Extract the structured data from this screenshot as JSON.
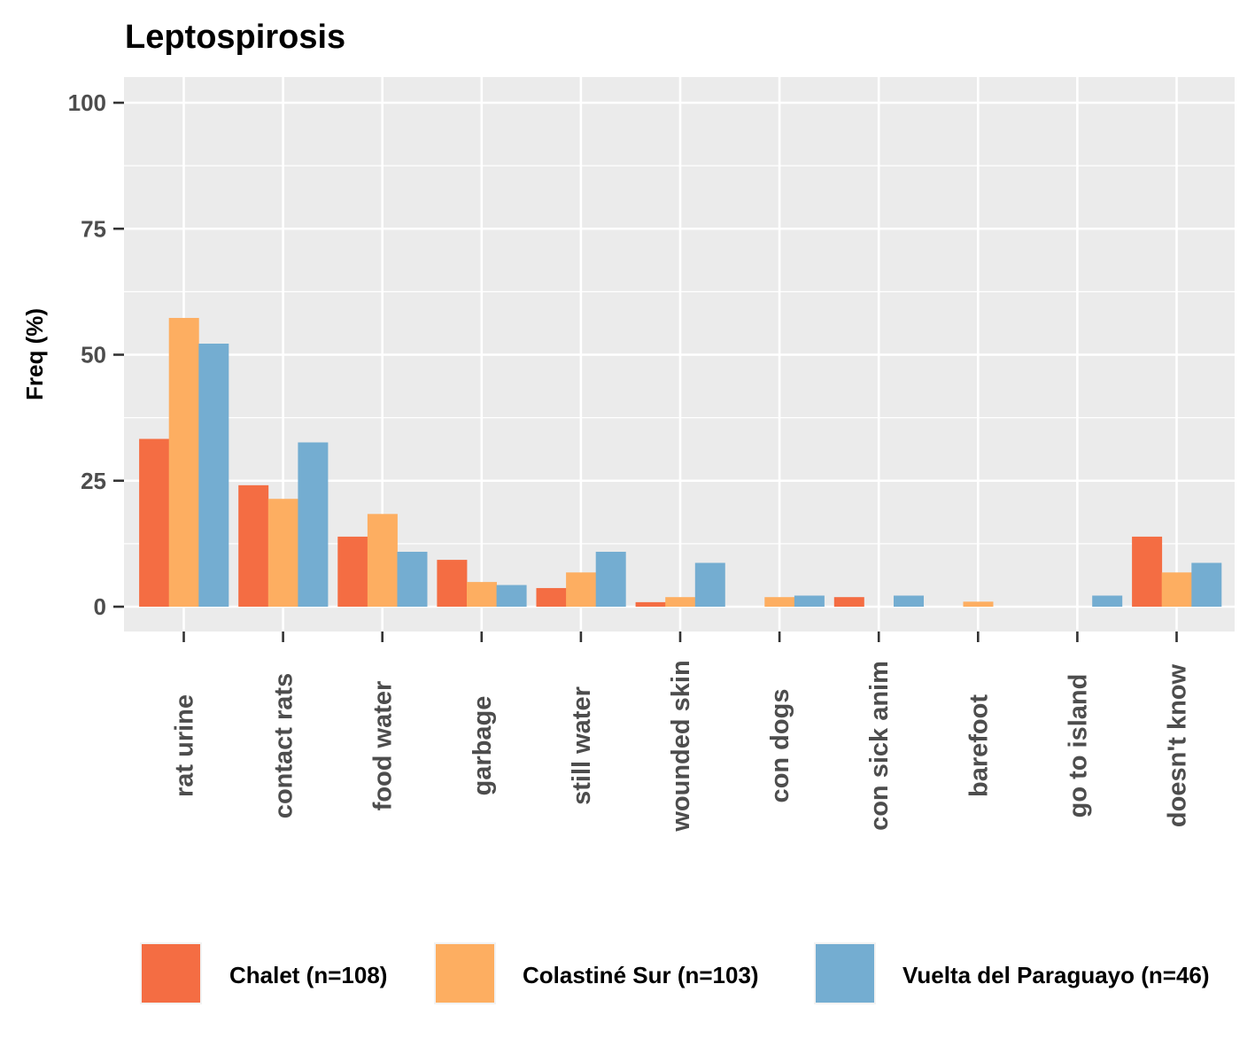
{
  "chart_data": {
    "type": "bar",
    "title": "Leptospirosis",
    "xlabel": "",
    "ylabel": "Freq (%)",
    "ylim": [
      -5,
      104
    ],
    "yticks": [
      0,
      25,
      50,
      75,
      100
    ],
    "grid": true,
    "legend_position": "bottom",
    "categories": [
      "rat urine",
      "contact rats",
      "food water",
      "garbage",
      "still water",
      "wounded skin",
      "con dogs",
      "con sick anim",
      "barefoot",
      "go to island",
      "doesn't know"
    ],
    "series": [
      {
        "name": "Chalet (n=108)",
        "color": "#f46d43",
        "values": [
          33.3,
          24.1,
          13.9,
          9.3,
          3.7,
          0.9,
          0,
          1.9,
          0,
          0,
          13.9
        ]
      },
      {
        "name": "Colastiné Sur (n=103)",
        "color": "#fdae61",
        "values": [
          57.3,
          21.4,
          18.4,
          4.9,
          6.8,
          1.9,
          1.9,
          0,
          1.0,
          0,
          6.8
        ]
      },
      {
        "name": "Vuelta del Paraguayo (n=46)",
        "color": "#74add1",
        "values": [
          52.2,
          32.6,
          10.9,
          4.3,
          10.9,
          8.7,
          2.2,
          2.2,
          0,
          2.2,
          8.7
        ]
      }
    ],
    "panel_background": "#ebebeb",
    "grid_color": "#ffffff"
  }
}
